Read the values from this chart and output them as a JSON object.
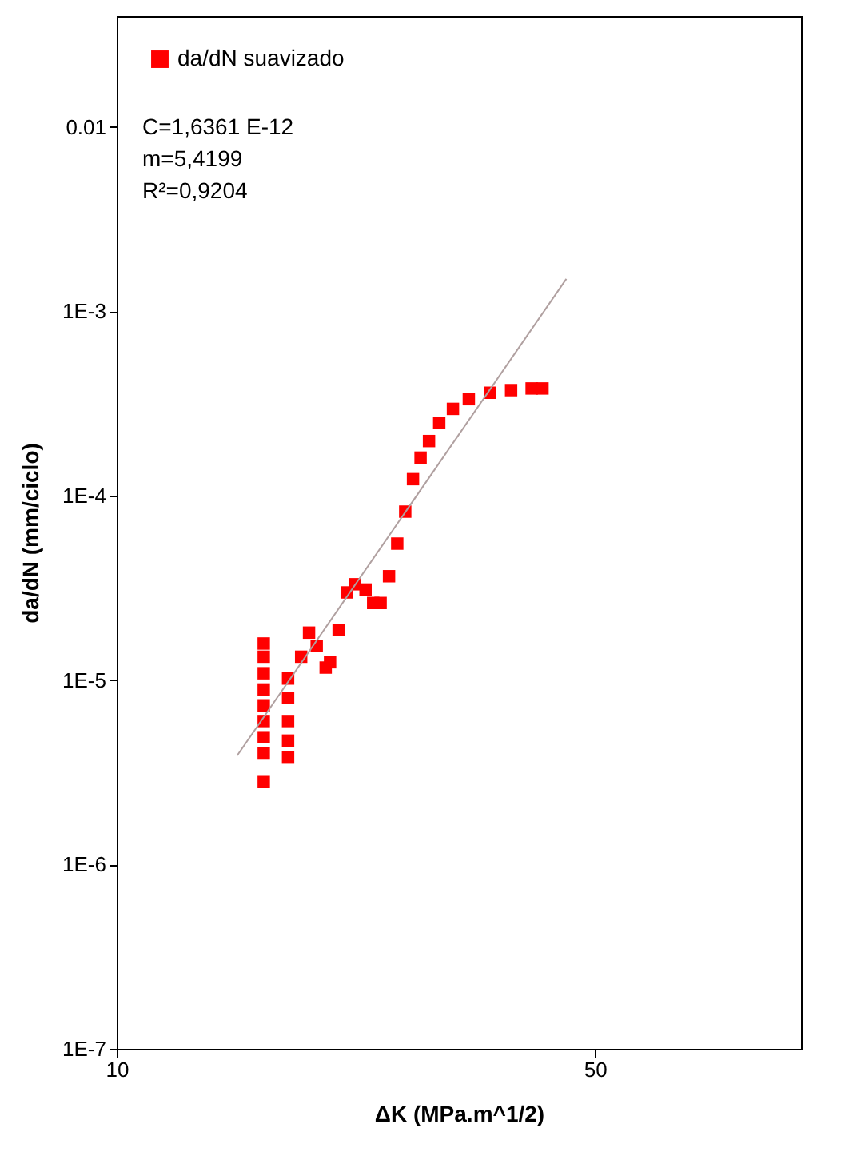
{
  "chart_data": {
    "type": "scatter",
    "xlabel": "ΔK (MPa.m^1/2)",
    "ylabel": "da/dN (mm/ciclo)",
    "log": "xy",
    "xlim": [
      10,
      100
    ],
    "xticks": [
      10,
      50
    ],
    "ylim": [
      1e-07,
      0.04
    ],
    "yticks": [
      {
        "value": 1e-07,
        "label": "1E-7"
      },
      {
        "value": 1e-06,
        "label": "1E-6"
      },
      {
        "value": 1e-05,
        "label": "1E-5"
      },
      {
        "value": 0.0001,
        "label": "1E-4"
      },
      {
        "value": 0.001,
        "label": "1E-3"
      },
      0.01
    ],
    "grid": false,
    "legend": "top left",
    "marker": "square",
    "annotations": [
      "C=1,6361 E-12",
      "m=5,4199",
      "R²=0,9204"
    ],
    "series": [
      {
        "name": "da/dN suavizado",
        "color": "#ff0000",
        "x": [
          16.4,
          16.4,
          16.4,
          16.4,
          16.4,
          16.4,
          16.4,
          16.4,
          16.4,
          17.8,
          17.8,
          17.8,
          17.8,
          17.8,
          18.6,
          19.1,
          19.6,
          20.2,
          20.5,
          21.1,
          21.7,
          22.3,
          23.1,
          23.7,
          24.3,
          25.0,
          25.7,
          26.4,
          27.1,
          27.8,
          28.6,
          29.6,
          31.0,
          32.7,
          35.1,
          37.7,
          40.4,
          41.9
        ],
        "values": [
          1.58e-05,
          1.34e-05,
          1.09e-05,
          8.9e-06,
          7.3e-06,
          6e-06,
          4.9e-06,
          4e-06,
          2.8e-06,
          1.02e-05,
          8e-06,
          6e-06,
          4.7e-06,
          3.8e-06,
          1.34e-05,
          1.81e-05,
          1.53e-05,
          1.17e-05,
          1.25e-05,
          1.87e-05,
          2.99e-05,
          3.31e-05,
          3.1e-05,
          2.62e-05,
          2.62e-05,
          3.66e-05,
          5.5e-05,
          8.2e-05,
          0.000123,
          0.000161,
          0.000198,
          0.000249,
          0.000296,
          0.000334,
          0.000362,
          0.000374,
          0.000382,
          0.000382
        ]
      },
      {
        "type": "line",
        "marker": "none",
        "color": "#b0a0a0",
        "x": [
          15.0,
          45.4
        ],
        "values": [
          3.9e-06,
          0.0015
        ]
      }
    ]
  }
}
